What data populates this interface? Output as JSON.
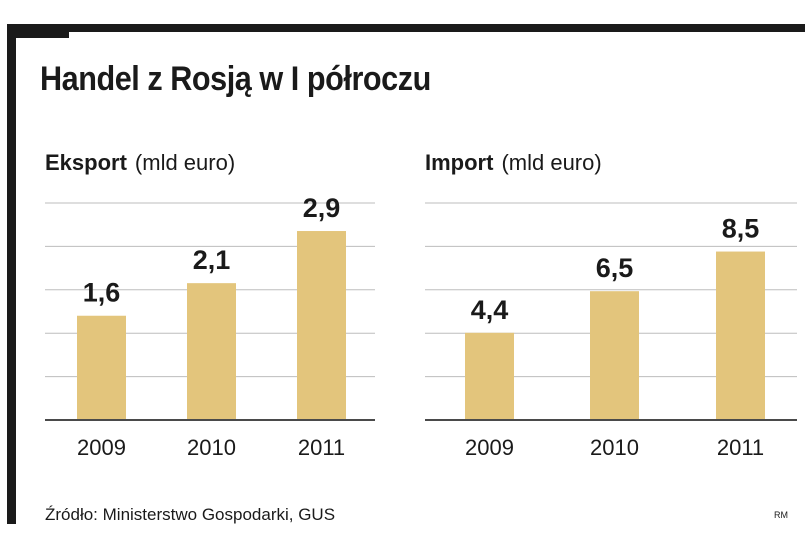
{
  "title": "Handel z Rosją w I półroczu",
  "source": "Źródło: Ministerstwo Gospodarki, GUS",
  "credit": "RM",
  "colors": {
    "bar": "#e3c57c",
    "grid": "#bdbdbd",
    "axis": "#4a4a4a",
    "text": "#1a1a1a",
    "frame": "#1a1a1a"
  },
  "chart_data": [
    {
      "type": "bar",
      "title": "Eksport",
      "unit": "(mld euro)",
      "categories": [
        "2009",
        "2010",
        "2011"
      ],
      "values": [
        1.6,
        2.1,
        2.9
      ],
      "value_labels": [
        "1,6",
        "2,1",
        "2,9"
      ],
      "ylim": [
        0,
        3.33
      ],
      "grid": true
    },
    {
      "type": "bar",
      "title": "Import",
      "unit": "(mld euro)",
      "categories": [
        "2009",
        "2010",
        "2011"
      ],
      "values": [
        4.4,
        6.5,
        8.5
      ],
      "value_labels": [
        "4,4",
        "6,5",
        "8,5"
      ],
      "ylim": [
        0,
        10.95
      ],
      "grid": true
    }
  ]
}
